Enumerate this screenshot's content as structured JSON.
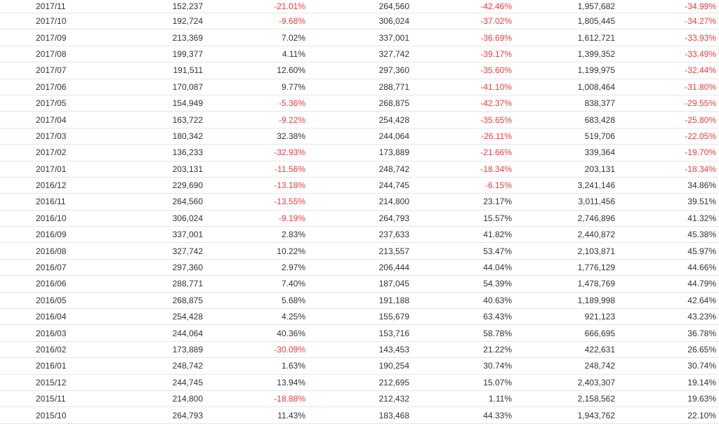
{
  "colors": {
    "negative": "#f03c3c",
    "text": "#333333",
    "divider": "#e6e6e6"
  },
  "rows": [
    {
      "month": "2017/11",
      "v1": "152,237",
      "p1": "-21.01%",
      "v2": "264,560",
      "p2": "-42.46%",
      "v3": "1,957,682",
      "p3": "-34.99%"
    },
    {
      "month": "2017/10",
      "v1": "192,724",
      "p1": "-9.68%",
      "v2": "306,024",
      "p2": "-37.02%",
      "v3": "1,805,445",
      "p3": "-34.27%"
    },
    {
      "month": "2017/09",
      "v1": "213,369",
      "p1": "7.02%",
      "v2": "337,001",
      "p2": "-36.69%",
      "v3": "1,612,721",
      "p3": "-33.93%"
    },
    {
      "month": "2017/08",
      "v1": "199,377",
      "p1": "4.11%",
      "v2": "327,742",
      "p2": "-39.17%",
      "v3": "1,399,352",
      "p3": "-33.49%"
    },
    {
      "month": "2017/07",
      "v1": "191,511",
      "p1": "12.60%",
      "v2": "297,360",
      "p2": "-35.60%",
      "v3": "1,199,975",
      "p3": "-32.44%"
    },
    {
      "month": "2017/06",
      "v1": "170,087",
      "p1": "9.77%",
      "v2": "288,771",
      "p2": "-41.10%",
      "v3": "1,008,464",
      "p3": "-31.80%"
    },
    {
      "month": "2017/05",
      "v1": "154,949",
      "p1": "-5.36%",
      "v2": "268,875",
      "p2": "-42.37%",
      "v3": "838,377",
      "p3": "-29.55%"
    },
    {
      "month": "2017/04",
      "v1": "163,722",
      "p1": "-9.22%",
      "v2": "254,428",
      "p2": "-35.65%",
      "v3": "683,428",
      "p3": "-25.80%"
    },
    {
      "month": "2017/03",
      "v1": "180,342",
      "p1": "32.38%",
      "v2": "244,064",
      "p2": "-26.11%",
      "v3": "519,706",
      "p3": "-22.05%"
    },
    {
      "month": "2017/02",
      "v1": "136,233",
      "p1": "-32.93%",
      "v2": "173,889",
      "p2": "-21.66%",
      "v3": "339,364",
      "p3": "-19.70%"
    },
    {
      "month": "2017/01",
      "v1": "203,131",
      "p1": "-11.56%",
      "v2": "248,742",
      "p2": "-18.34%",
      "v3": "203,131",
      "p3": "-18.34%"
    },
    {
      "month": "2016/12",
      "v1": "229,690",
      "p1": "-13.18%",
      "v2": "244,745",
      "p2": "-6.15%",
      "v3": "3,241,146",
      "p3": "34.86%"
    },
    {
      "month": "2016/11",
      "v1": "264,560",
      "p1": "-13.55%",
      "v2": "214,800",
      "p2": "23.17%",
      "v3": "3,011,456",
      "p3": "39.51%"
    },
    {
      "month": "2016/10",
      "v1": "306,024",
      "p1": "-9.19%",
      "v2": "264,793",
      "p2": "15.57%",
      "v3": "2,746,896",
      "p3": "41.32%"
    },
    {
      "month": "2016/09",
      "v1": "337,001",
      "p1": "2.83%",
      "v2": "237,633",
      "p2": "41.82%",
      "v3": "2,440,872",
      "p3": "45.38%"
    },
    {
      "month": "2016/08",
      "v1": "327,742",
      "p1": "10.22%",
      "v2": "213,557",
      "p2": "53.47%",
      "v3": "2,103,871",
      "p3": "45.97%"
    },
    {
      "month": "2016/07",
      "v1": "297,360",
      "p1": "2.97%",
      "v2": "206,444",
      "p2": "44.04%",
      "v3": "1,776,129",
      "p3": "44.66%"
    },
    {
      "month": "2016/06",
      "v1": "288,771",
      "p1": "7.40%",
      "v2": "187,045",
      "p2": "54.39%",
      "v3": "1,478,769",
      "p3": "44.79%"
    },
    {
      "month": "2016/05",
      "v1": "268,875",
      "p1": "5.68%",
      "v2": "191,188",
      "p2": "40.63%",
      "v3": "1,189,998",
      "p3": "42.64%"
    },
    {
      "month": "2016/04",
      "v1": "254,428",
      "p1": "4.25%",
      "v2": "155,679",
      "p2": "63.43%",
      "v3": "921,123",
      "p3": "43.23%"
    },
    {
      "month": "2016/03",
      "v1": "244,064",
      "p1": "40.36%",
      "v2": "153,716",
      "p2": "58.78%",
      "v3": "666,695",
      "p3": "36.78%"
    },
    {
      "month": "2016/02",
      "v1": "173,889",
      "p1": "-30.09%",
      "v2": "143,453",
      "p2": "21.22%",
      "v3": "422,631",
      "p3": "26.65%"
    },
    {
      "month": "2016/01",
      "v1": "248,742",
      "p1": "1.63%",
      "v2": "190,254",
      "p2": "30.74%",
      "v3": "248,742",
      "p3": "30.74%"
    },
    {
      "month": "2015/12",
      "v1": "244,745",
      "p1": "13.94%",
      "v2": "212,695",
      "p2": "15.07%",
      "v3": "2,403,307",
      "p3": "19.14%"
    },
    {
      "month": "2015/11",
      "v1": "214,800",
      "p1": "-18.88%",
      "v2": "212,432",
      "p2": "1.11%",
      "v3": "2,158,562",
      "p3": "19.63%"
    },
    {
      "month": "2015/10",
      "v1": "264,793",
      "p1": "11.43%",
      "v2": "183,468",
      "p2": "44.33%",
      "v3": "1,943,762",
      "p3": "22.10%"
    }
  ]
}
